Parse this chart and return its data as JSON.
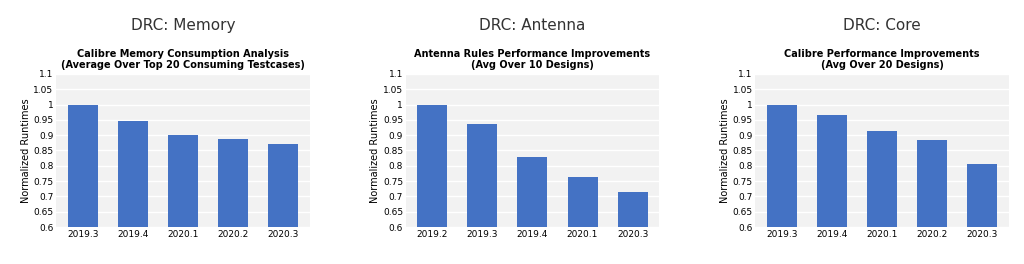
{
  "charts": [
    {
      "panel_title": "DRC: Memory",
      "subtitle_line1": "Calibre Memory Consumption Analysis",
      "subtitle_line2": "(Average Over Top 20 Consuming Testcases)",
      "categories": [
        "2019.3",
        "2019.4",
        "2020.1",
        "2020.2",
        "2020.3"
      ],
      "values": [
        1.0,
        0.945,
        0.9,
        0.888,
        0.872
      ],
      "ylabel": "Normalized Runtimes",
      "ylim": [
        0.6,
        1.1
      ],
      "yticks": [
        0.6,
        0.65,
        0.7,
        0.75,
        0.8,
        0.85,
        0.9,
        0.95,
        1.0,
        1.05,
        1.1
      ]
    },
    {
      "panel_title": "DRC: Antenna",
      "subtitle_line1": "Antenna Rules Performance Improvements",
      "subtitle_line2": "(Avg Over 10 Designs)",
      "categories": [
        "2019.2",
        "2019.3",
        "2019.4",
        "2020.1",
        "2020.3"
      ],
      "values": [
        1.0,
        0.935,
        0.83,
        0.765,
        0.715
      ],
      "ylabel": "Normalized Runtimes",
      "ylim": [
        0.6,
        1.1
      ],
      "yticks": [
        0.6,
        0.65,
        0.7,
        0.75,
        0.8,
        0.85,
        0.9,
        0.95,
        1.0,
        1.05,
        1.1
      ]
    },
    {
      "panel_title": "DRC: Core",
      "subtitle_line1": "Calibre Performance Improvements",
      "subtitle_line2": "(Avg Over 20 Designs)",
      "categories": [
        "2019.3",
        "2019.4",
        "2020.1",
        "2020.2",
        "2020.3"
      ],
      "values": [
        1.0,
        0.965,
        0.912,
        0.885,
        0.807
      ],
      "ylabel": "Normalized Runtimes",
      "ylim": [
        0.6,
        1.1
      ],
      "yticks": [
        0.6,
        0.65,
        0.7,
        0.75,
        0.8,
        0.85,
        0.9,
        0.95,
        1.0,
        1.05,
        1.1
      ]
    }
  ],
  "bar_color": "#4472C4",
  "axes_facecolor": "#f2f2f2",
  "figure_facecolor": "#ffffff",
  "panel_title_fontsize": 11,
  "subtitle_fontsize": 7.0,
  "ylabel_fontsize": 7.0,
  "tick_fontsize": 6.5,
  "grid_color": "#ffffff",
  "grid_linewidth": 1.0
}
